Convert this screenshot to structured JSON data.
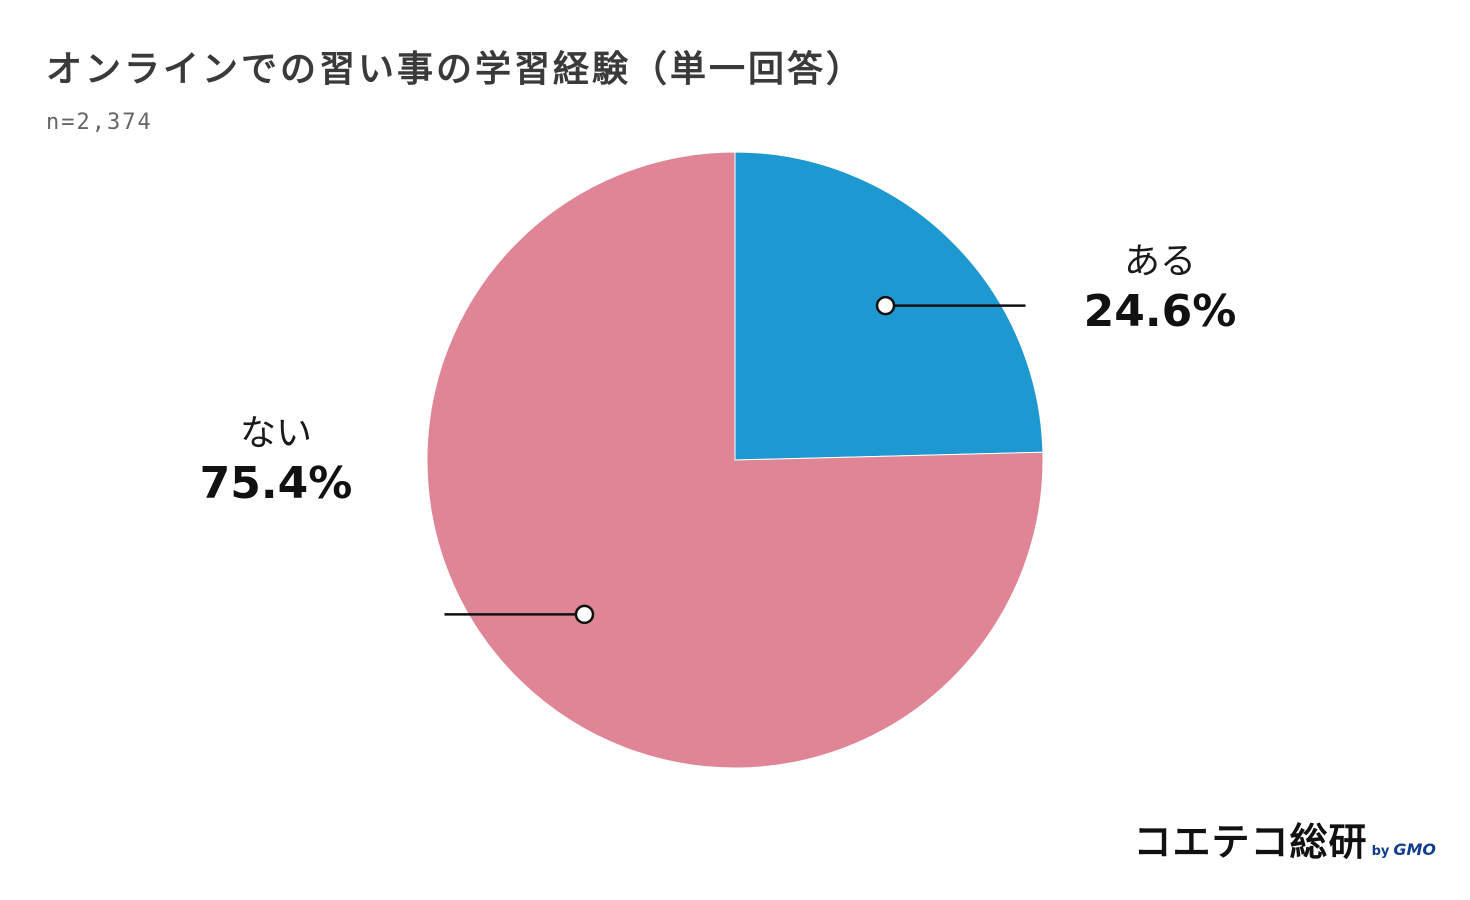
{
  "header": {
    "title": "オンラインでの習い事の学習経験（単一回答）",
    "sample_size": "n=2,374"
  },
  "chart_data": {
    "type": "pie",
    "slices": [
      {
        "name": "ある",
        "value": 24.6,
        "label": "24.6%",
        "color": "#1d98d0"
      },
      {
        "name": "ない",
        "value": 75.4,
        "label": "75.4%",
        "color": "#e08595"
      }
    ],
    "start": "12 o'clock",
    "direction": "clockwise",
    "legend": "none (labels with leader lines)"
  },
  "logo": {
    "main": "コエテコ総研",
    "by": "by",
    "brand": "GMO",
    "color": "#123e8f"
  }
}
